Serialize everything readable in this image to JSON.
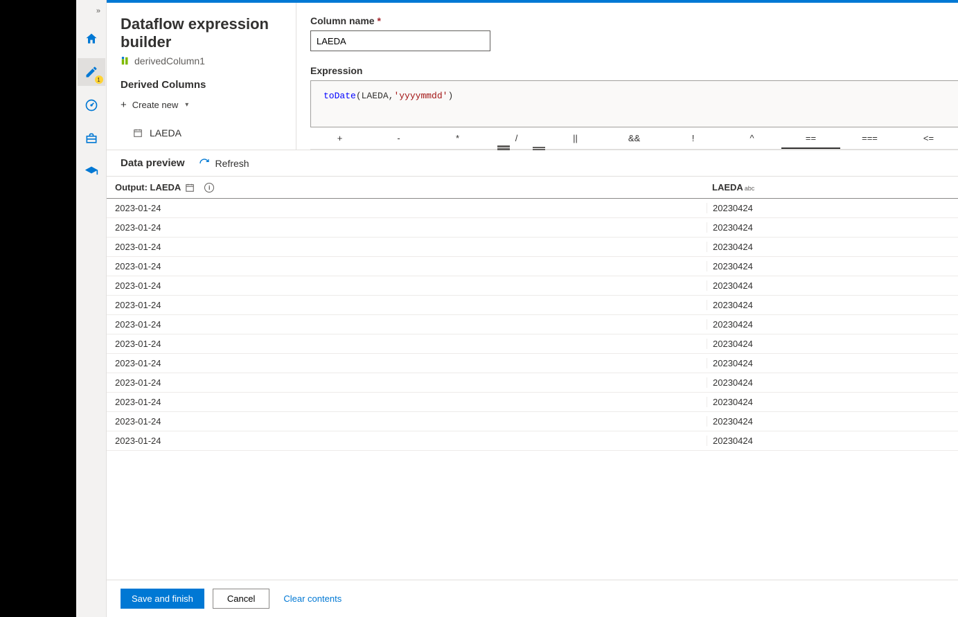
{
  "header": {
    "title": "Dataflow expression builder",
    "subtitle": "derivedColumn1"
  },
  "leftPanel": {
    "sectionTitle": "Derived Columns",
    "createNew": "Create new",
    "columns": [
      {
        "name": "LAEDA"
      }
    ]
  },
  "form": {
    "columnNameLabel": "Column name",
    "columnNameValue": "LAEDA",
    "expressionLabel": "Expression",
    "expression": {
      "fn": "toDate",
      "arg": "LAEDA",
      "str": "'yyyymmdd'"
    }
  },
  "operators": [
    "+",
    "-",
    "*",
    "/",
    "||",
    "&&",
    "!",
    "^",
    "==",
    "===",
    "<="
  ],
  "operatorActiveIndex": 8,
  "preview": {
    "tab": "Data preview",
    "refresh": "Refresh",
    "outputLabel": "Output: LAEDA",
    "col2": "LAEDA",
    "col2Type": "abc",
    "rows": [
      {
        "out": "2023-01-24",
        "src": "20230424"
      },
      {
        "out": "2023-01-24",
        "src": "20230424"
      },
      {
        "out": "2023-01-24",
        "src": "20230424"
      },
      {
        "out": "2023-01-24",
        "src": "20230424"
      },
      {
        "out": "2023-01-24",
        "src": "20230424"
      },
      {
        "out": "2023-01-24",
        "src": "20230424"
      },
      {
        "out": "2023-01-24",
        "src": "20230424"
      },
      {
        "out": "2023-01-24",
        "src": "20230424"
      },
      {
        "out": "2023-01-24",
        "src": "20230424"
      },
      {
        "out": "2023-01-24",
        "src": "20230424"
      },
      {
        "out": "2023-01-24",
        "src": "20230424"
      },
      {
        "out": "2023-01-24",
        "src": "20230424"
      },
      {
        "out": "2023-01-24",
        "src": "20230424"
      }
    ]
  },
  "footer": {
    "save": "Save and finish",
    "cancel": "Cancel",
    "clear": "Clear contents"
  },
  "nav": {
    "badge": "1"
  },
  "colors": {
    "accent": "#0078d4"
  }
}
